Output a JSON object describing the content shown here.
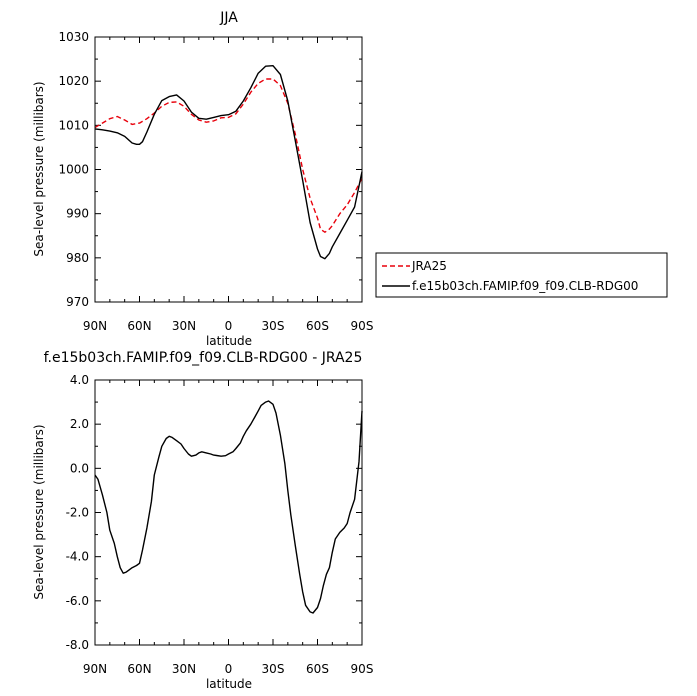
{
  "chart_data": [
    {
      "type": "line",
      "title": "JJA",
      "xlabel": "latitude",
      "ylabel": "Sea-level pressure (millibars)",
      "xlim": [
        90,
        -90
      ],
      "ylim": [
        970,
        1030
      ],
      "x_ticks": [
        90,
        60,
        30,
        0,
        -30,
        -60,
        -90
      ],
      "x_tick_labels": [
        "90N",
        "60N",
        "30N",
        "0",
        "30S",
        "60S",
        "90S"
      ],
      "y_ticks": [
        970,
        980,
        990,
        1000,
        1010,
        1020,
        1030
      ],
      "y_tick_labels": [
        "970",
        "980",
        "990",
        "1000",
        "1010",
        "1020",
        "1030"
      ],
      "legend_position": "right",
      "series": [
        {
          "name": "JRA25",
          "color": "#e8000b",
          "dash": "dashed",
          "x": [
            90,
            85,
            80,
            75,
            70,
            65,
            60,
            55,
            50,
            45,
            40,
            35,
            30,
            25,
            20,
            15,
            10,
            5,
            0,
            -5,
            -10,
            -15,
            -20,
            -25,
            -30,
            -35,
            -40,
            -45,
            -50,
            -55,
            -60,
            -62,
            -65,
            -68,
            -70,
            -75,
            -80,
            -85,
            -90
          ],
          "y": [
            1009.5,
            1010.5,
            1011.5,
            1012.0,
            1011.2,
            1010.2,
            1010.5,
            1011.5,
            1012.8,
            1014.3,
            1015.2,
            1015.3,
            1014.3,
            1012.5,
            1011.2,
            1010.7,
            1011.0,
            1011.7,
            1011.8,
            1012.6,
            1014.8,
            1017.5,
            1019.5,
            1020.5,
            1020.5,
            1019.0,
            1015.0,
            1008.0,
            1000.0,
            993.5,
            989.0,
            986.5,
            985.8,
            986.5,
            987.3,
            990.0,
            992.0,
            994.8,
            998.0
          ]
        },
        {
          "name": "f.e15b03ch.FAMIP.f09_f09.CLB-RDG00",
          "color": "#000000",
          "dash": "solid",
          "x": [
            90,
            85,
            80,
            75,
            70,
            65,
            62,
            60,
            58,
            55,
            50,
            45,
            40,
            35,
            30,
            25,
            20,
            15,
            10,
            5,
            0,
            -5,
            -10,
            -15,
            -20,
            -25,
            -30,
            -35,
            -40,
            -45,
            -50,
            -55,
            -60,
            -62,
            -65,
            -68,
            -70,
            -75,
            -80,
            -85,
            -90
          ],
          "y": [
            1009.2,
            1009.0,
            1008.7,
            1008.3,
            1007.5,
            1006.0,
            1005.7,
            1005.7,
            1006.3,
            1008.5,
            1012.5,
            1015.6,
            1016.5,
            1016.9,
            1015.5,
            1013.0,
            1011.6,
            1011.4,
            1011.8,
            1012.2,
            1012.4,
            1013.2,
            1015.5,
            1018.5,
            1021.8,
            1023.4,
            1023.5,
            1021.5,
            1015.5,
            1006.5,
            997.5,
            988.0,
            982.0,
            980.3,
            979.8,
            981.0,
            982.5,
            985.5,
            988.5,
            991.5,
            999.5
          ]
        }
      ]
    },
    {
      "type": "line",
      "title": "f.e15b03ch.FAMIP.f09_f09.CLB-RDG00 - JRA25",
      "xlabel": "latitude",
      "ylabel": "Sea-level pressure (millibars)",
      "xlim": [
        90,
        -90
      ],
      "ylim": [
        -8.0,
        4.0
      ],
      "x_ticks": [
        90,
        60,
        30,
        0,
        -30,
        -60,
        -90
      ],
      "x_tick_labels": [
        "90N",
        "60N",
        "30N",
        "0",
        "30S",
        "60S",
        "90S"
      ],
      "y_ticks": [
        -8,
        -6,
        -4,
        -2,
        0,
        2,
        4
      ],
      "y_tick_labels": [
        "-8.0",
        "-6.0",
        "-4.0",
        "-2.0",
        "0.0",
        "2.0",
        "4.0"
      ],
      "series": [
        {
          "color": "#000000",
          "dash": "solid",
          "x": [
            90,
            88,
            85,
            82,
            80,
            77,
            75,
            73,
            71,
            69,
            67,
            65,
            62,
            60,
            58,
            55,
            52,
            50,
            47,
            45,
            42,
            40,
            38,
            35,
            32,
            30,
            27,
            25,
            22,
            20,
            18,
            15,
            12,
            10,
            8,
            5,
            2,
            0,
            -3,
            -5,
            -8,
            -10,
            -12,
            -15,
            -18,
            -20,
            -22,
            -25,
            -27,
            -28,
            -30,
            -32,
            -35,
            -38,
            -40,
            -42,
            -45,
            -48,
            -50,
            -52,
            -55,
            -57,
            -60,
            -62,
            -64,
            -66,
            -68,
            -70,
            -72,
            -75,
            -78,
            -80,
            -82,
            -85,
            -88,
            -90
          ],
          "y": [
            -0.3,
            -0.5,
            -1.2,
            -2.0,
            -2.8,
            -3.4,
            -4.0,
            -4.5,
            -4.75,
            -4.7,
            -4.6,
            -4.5,
            -4.4,
            -4.3,
            -3.7,
            -2.7,
            -1.5,
            -0.3,
            0.5,
            1.0,
            1.35,
            1.45,
            1.4,
            1.25,
            1.1,
            0.9,
            0.65,
            0.55,
            0.6,
            0.7,
            0.75,
            0.7,
            0.65,
            0.6,
            0.58,
            0.55,
            0.57,
            0.65,
            0.75,
            0.9,
            1.15,
            1.45,
            1.7,
            2.0,
            2.35,
            2.6,
            2.85,
            3.0,
            3.05,
            3.0,
            2.9,
            2.5,
            1.5,
            0.2,
            -1.0,
            -2.1,
            -3.5,
            -4.8,
            -5.6,
            -6.2,
            -6.5,
            -6.55,
            -6.3,
            -5.9,
            -5.3,
            -4.8,
            -4.5,
            -3.8,
            -3.2,
            -2.9,
            -2.7,
            -2.5,
            -2.0,
            -1.4,
            0.3,
            2.6
          ]
        }
      ]
    }
  ]
}
